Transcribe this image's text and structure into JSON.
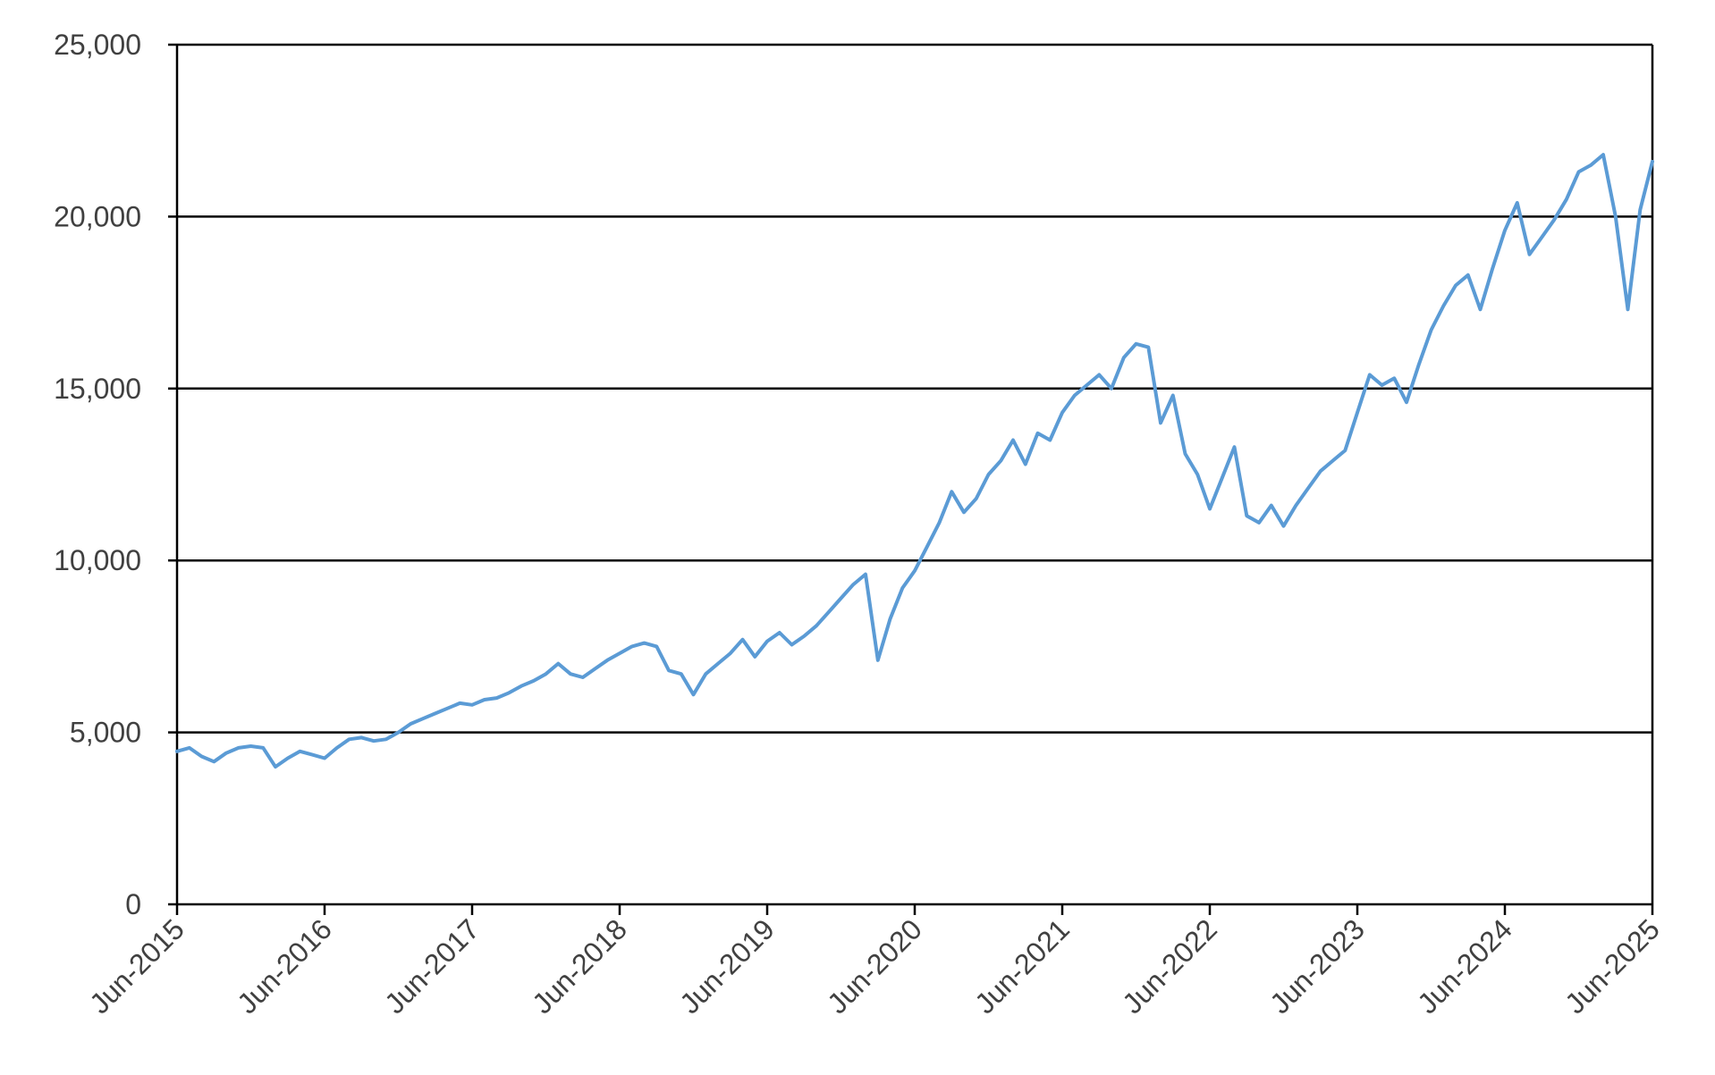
{
  "chart_data": {
    "type": "line",
    "title": "",
    "xlabel": "",
    "ylabel": "",
    "ylim": [
      0,
      25000
    ],
    "xlim": [
      "2015-06",
      "2025-06"
    ],
    "grid": "horizontal",
    "legend": "none",
    "y_ticks": [
      0,
      5000,
      10000,
      15000,
      20000,
      25000
    ],
    "y_tick_labels": [
      "0",
      "5,000",
      "10,000",
      "15,000",
      "20,000",
      "25,000"
    ],
    "x_tick_dates": [
      "2015-06",
      "2016-06",
      "2017-06",
      "2018-06",
      "2019-06",
      "2020-06",
      "2021-06",
      "2022-06",
      "2023-06",
      "2024-06",
      "2025-06"
    ],
    "x_tick_labels": [
      "Jun-2015",
      "Jun-2016",
      "Jun-2017",
      "Jun-2018",
      "Jun-2019",
      "Jun-2020",
      "Jun-2021",
      "Jun-2022",
      "Jun-2023",
      "Jun-2024",
      "Jun-2025"
    ],
    "series": [
      {
        "color": "#5b9bd5",
        "points": [
          [
            "2015-06",
            4450
          ],
          [
            "2015-07",
            4550
          ],
          [
            "2015-08",
            4300
          ],
          [
            "2015-09",
            4150
          ],
          [
            "2015-10",
            4400
          ],
          [
            "2015-11",
            4550
          ],
          [
            "2015-12",
            4600
          ],
          [
            "2016-01",
            4550
          ],
          [
            "2016-02",
            4000
          ],
          [
            "2016-03",
            4250
          ],
          [
            "2016-04",
            4450
          ],
          [
            "2016-05",
            4350
          ],
          [
            "2016-06",
            4250
          ],
          [
            "2016-07",
            4550
          ],
          [
            "2016-08",
            4800
          ],
          [
            "2016-09",
            4850
          ],
          [
            "2016-10",
            4750
          ],
          [
            "2016-11",
            4800
          ],
          [
            "2016-12",
            5000
          ],
          [
            "2017-01",
            5250
          ],
          [
            "2017-02",
            5400
          ],
          [
            "2017-03",
            5550
          ],
          [
            "2017-04",
            5700
          ],
          [
            "2017-05",
            5850
          ],
          [
            "2017-06",
            5800
          ],
          [
            "2017-07",
            5950
          ],
          [
            "2017-08",
            6000
          ],
          [
            "2017-09",
            6150
          ],
          [
            "2017-10",
            6350
          ],
          [
            "2017-11",
            6500
          ],
          [
            "2017-12",
            6700
          ],
          [
            "2018-01",
            7000
          ],
          [
            "2018-02",
            6700
          ],
          [
            "2018-03",
            6600
          ],
          [
            "2018-04",
            6850
          ],
          [
            "2018-05",
            7100
          ],
          [
            "2018-06",
            7300
          ],
          [
            "2018-07",
            7500
          ],
          [
            "2018-08",
            7600
          ],
          [
            "2018-09",
            7500
          ],
          [
            "2018-10",
            6800
          ],
          [
            "2018-11",
            6700
          ],
          [
            "2018-12",
            6100
          ],
          [
            "2019-01",
            6700
          ],
          [
            "2019-02",
            7000
          ],
          [
            "2019-03",
            7300
          ],
          [
            "2019-04",
            7700
          ],
          [
            "2019-05",
            7200
          ],
          [
            "2019-06",
            7650
          ],
          [
            "2019-07",
            7900
          ],
          [
            "2019-08",
            7550
          ],
          [
            "2019-09",
            7800
          ],
          [
            "2019-10",
            8100
          ],
          [
            "2019-11",
            8500
          ],
          [
            "2019-12",
            8900
          ],
          [
            "2020-01",
            9300
          ],
          [
            "2020-02",
            9600
          ],
          [
            "2020-03",
            7100
          ],
          [
            "2020-04",
            8300
          ],
          [
            "2020-05",
            9200
          ],
          [
            "2020-06",
            9700
          ],
          [
            "2020-07",
            10400
          ],
          [
            "2020-08",
            11100
          ],
          [
            "2020-09",
            12000
          ],
          [
            "2020-10",
            11400
          ],
          [
            "2020-11",
            11800
          ],
          [
            "2020-12",
            12500
          ],
          [
            "2021-01",
            12900
          ],
          [
            "2021-02",
            13500
          ],
          [
            "2021-03",
            12800
          ],
          [
            "2021-04",
            13700
          ],
          [
            "2021-05",
            13500
          ],
          [
            "2021-06",
            14300
          ],
          [
            "2021-07",
            14800
          ],
          [
            "2021-08",
            15100
          ],
          [
            "2021-09",
            15400
          ],
          [
            "2021-10",
            15000
          ],
          [
            "2021-11",
            15900
          ],
          [
            "2021-12",
            16300
          ],
          [
            "2022-01",
            16200
          ],
          [
            "2022-02",
            14000
          ],
          [
            "2022-03",
            14800
          ],
          [
            "2022-04",
            13100
          ],
          [
            "2022-05",
            12500
          ],
          [
            "2022-06",
            11500
          ],
          [
            "2022-07",
            12400
          ],
          [
            "2022-08",
            13300
          ],
          [
            "2022-09",
            11300
          ],
          [
            "2022-10",
            11100
          ],
          [
            "2022-11",
            11600
          ],
          [
            "2022-12",
            11000
          ],
          [
            "2023-01",
            11600
          ],
          [
            "2023-02",
            12100
          ],
          [
            "2023-03",
            12600
          ],
          [
            "2023-04",
            12900
          ],
          [
            "2023-05",
            13200
          ],
          [
            "2023-06",
            14300
          ],
          [
            "2023-07",
            15400
          ],
          [
            "2023-08",
            15100
          ],
          [
            "2023-09",
            15300
          ],
          [
            "2023-10",
            14600
          ],
          [
            "2023-11",
            15700
          ],
          [
            "2023-12",
            16700
          ],
          [
            "2024-01",
            17400
          ],
          [
            "2024-02",
            18000
          ],
          [
            "2024-03",
            18300
          ],
          [
            "2024-04",
            17300
          ],
          [
            "2024-05",
            18500
          ],
          [
            "2024-06",
            19600
          ],
          [
            "2024-07",
            20400
          ],
          [
            "2024-08",
            18900
          ],
          [
            "2024-09",
            19400
          ],
          [
            "2024-10",
            19900
          ],
          [
            "2024-11",
            20500
          ],
          [
            "2024-12",
            21300
          ],
          [
            "2025-01",
            21500
          ],
          [
            "2025-02",
            21800
          ],
          [
            "2025-03",
            20000
          ],
          [
            "2025-04",
            17300
          ],
          [
            "2025-05",
            20200
          ],
          [
            "2025-06",
            21600
          ]
        ]
      }
    ]
  }
}
